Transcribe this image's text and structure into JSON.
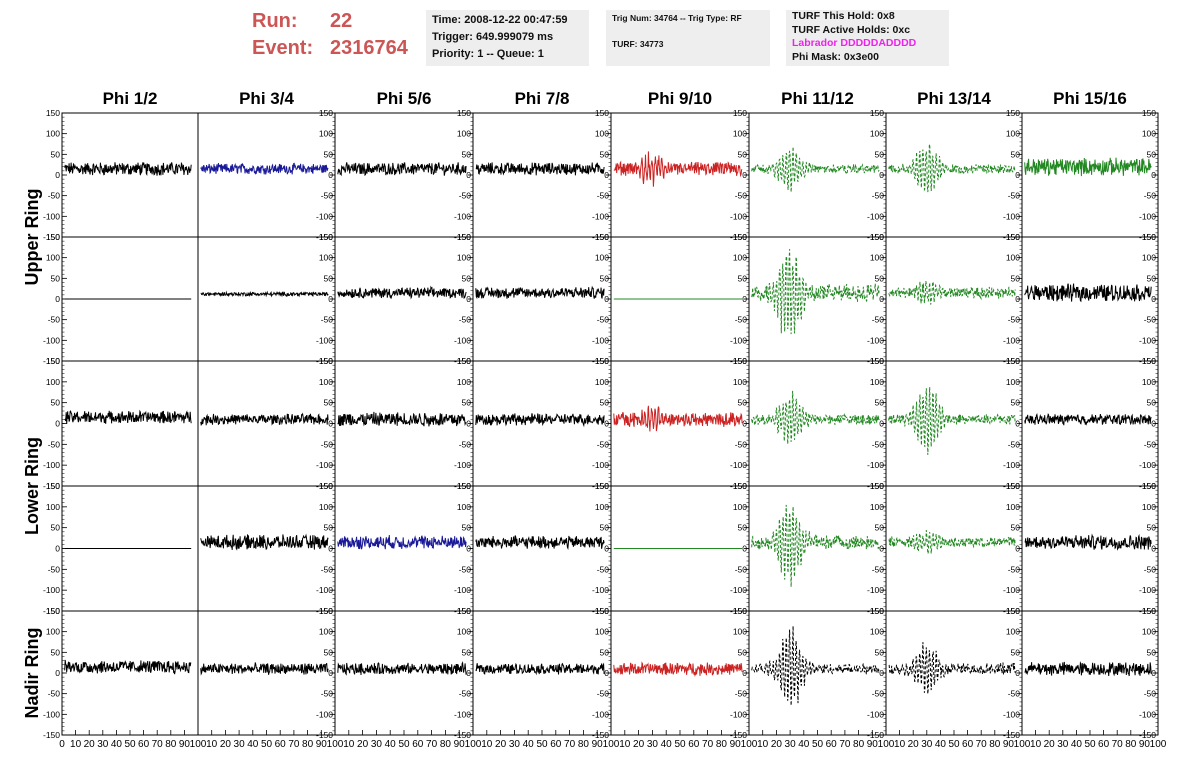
{
  "header": {
    "run_label": "Run:",
    "run_value": "22",
    "event_label": "Event:",
    "event_value": "2316764"
  },
  "info": {
    "time": "Time: 2008-12-22 00:47:59",
    "trigger": "Trigger: 649.999079 ms",
    "priority": "Priority: 1 -- Queue: 1",
    "trig_num": "Trig Num: 34764 -- Trig Type: RF",
    "turf": "TURF: 34773",
    "turf_this_hold": "TURF This Hold: 0x8",
    "turf_active_holds": "TURF Active Holds: 0xc",
    "labrador": "Labrador DDDDDADDDD",
    "phi_mask": "Phi Mask: 0x3e00"
  },
  "colors": {
    "header_red": "#cc5555",
    "magenta": "#ee22ee",
    "trace_black": "#000000",
    "trace_blue": "#1a1a99",
    "trace_red": "#cc2222",
    "trace_green": "#228822",
    "info_bg": "#eeeeee"
  },
  "chart_data": {
    "type": "line",
    "columns": [
      "Phi 1/2",
      "Phi 3/4",
      "Phi 5/6",
      "Phi 7/8",
      "Phi 9/10",
      "Phi 11/12",
      "Phi 13/14",
      "Phi 15/16"
    ],
    "rings": [
      "Upper Ring",
      "Lower Ring",
      "Nadir Ring"
    ],
    "x_ticks": [
      "0",
      "10",
      "20",
      "30",
      "40",
      "50",
      "60",
      "70",
      "80",
      "90",
      "100"
    ],
    "xlim": [
      0,
      100
    ],
    "ylim": [
      -150,
      150
    ],
    "y_ticks": [
      -150,
      -100,
      -50,
      0,
      50,
      100,
      150
    ],
    "rows": [
      {
        "ring": "Upper Ring",
        "traces": [
          {
            "color": "black",
            "style": "solid",
            "amp": 14,
            "offset": 15,
            "pulse": 0
          },
          {
            "color": "blue",
            "style": "solid",
            "amp": 11,
            "offset": 15,
            "pulse": 0
          },
          {
            "color": "black",
            "style": "solid",
            "amp": 13,
            "offset": 15,
            "pulse": 0
          },
          {
            "color": "black",
            "style": "solid",
            "amp": 13,
            "offset": 15,
            "pulse": 0
          },
          {
            "color": "red",
            "style": "solid",
            "amp": 14,
            "offset": 15,
            "pulse": 35
          },
          {
            "color": "green",
            "style": "dashed",
            "amp": 9,
            "offset": 15,
            "pulse": 60
          },
          {
            "color": "green",
            "style": "dashed",
            "amp": 10,
            "offset": 15,
            "pulse": 70
          },
          {
            "color": "green",
            "style": "solid",
            "amp": 18,
            "offset": 20,
            "pulse": 0
          }
        ]
      },
      {
        "ring": "Upper Ring",
        "traces": [
          {
            "color": "black",
            "style": "flat",
            "amp": 0,
            "offset": 0,
            "pulse": 0
          },
          {
            "color": "black",
            "style": "solid",
            "amp": 4,
            "offset": 12,
            "pulse": 0
          },
          {
            "color": "black",
            "style": "solid",
            "amp": 11,
            "offset": 15,
            "pulse": 0
          },
          {
            "color": "black",
            "style": "solid",
            "amp": 12,
            "offset": 15,
            "pulse": 0
          },
          {
            "color": "green",
            "style": "flat",
            "amp": 0,
            "offset": 0,
            "pulse": 0
          },
          {
            "color": "green",
            "style": "dashed",
            "amp": 18,
            "offset": 15,
            "pulse": 120
          },
          {
            "color": "green",
            "style": "dashed",
            "amp": 12,
            "offset": 15,
            "pulse": 30
          },
          {
            "color": "black",
            "style": "solid",
            "amp": 18,
            "offset": 15,
            "pulse": 0
          }
        ]
      },
      {
        "ring": "Lower Ring",
        "traces": [
          {
            "color": "black",
            "style": "solid",
            "amp": 13,
            "offset": 15,
            "pulse": 0
          },
          {
            "color": "black",
            "style": "solid",
            "amp": 11,
            "offset": 10,
            "pulse": 0
          },
          {
            "color": "black",
            "style": "solid",
            "amp": 15,
            "offset": 10,
            "pulse": 0
          },
          {
            "color": "black",
            "style": "solid",
            "amp": 12,
            "offset": 10,
            "pulse": 0
          },
          {
            "color": "red",
            "style": "solid",
            "amp": 15,
            "offset": 10,
            "pulse": 35
          },
          {
            "color": "green",
            "style": "dashed",
            "amp": 11,
            "offset": 10,
            "pulse": 70
          },
          {
            "color": "green",
            "style": "dashed",
            "amp": 10,
            "offset": 10,
            "pulse": 95
          },
          {
            "color": "black",
            "style": "solid",
            "amp": 11,
            "offset": 10,
            "pulse": 0
          }
        ]
      },
      {
        "ring": "Lower Ring",
        "traces": [
          {
            "color": "black",
            "style": "flat",
            "amp": 0,
            "offset": 0,
            "pulse": 0
          },
          {
            "color": "black",
            "style": "solid",
            "amp": 15,
            "offset": 15,
            "pulse": 0
          },
          {
            "color": "blue",
            "style": "solid",
            "amp": 14,
            "offset": 15,
            "pulse": 0
          },
          {
            "color": "black",
            "style": "solid",
            "amp": 13,
            "offset": 15,
            "pulse": 0
          },
          {
            "color": "green",
            "style": "flat",
            "amp": 0,
            "offset": 0,
            "pulse": 0
          },
          {
            "color": "green",
            "style": "dashed",
            "amp": 14,
            "offset": 15,
            "pulse": 110
          },
          {
            "color": "green",
            "style": "dashed",
            "amp": 11,
            "offset": 15,
            "pulse": 30
          },
          {
            "color": "black",
            "style": "solid",
            "amp": 15,
            "offset": 15,
            "pulse": 0
          }
        ]
      },
      {
        "ring": "Nadir Ring",
        "traces": [
          {
            "color": "black",
            "style": "solid",
            "amp": 14,
            "offset": 15,
            "pulse": 0
          },
          {
            "color": "black",
            "style": "solid",
            "amp": 12,
            "offset": 10,
            "pulse": 0
          },
          {
            "color": "black",
            "style": "solid",
            "amp": 12,
            "offset": 10,
            "pulse": 0
          },
          {
            "color": "black",
            "style": "solid",
            "amp": 11,
            "offset": 10,
            "pulse": 0
          },
          {
            "color": "red",
            "style": "solid",
            "amp": 13,
            "offset": 10,
            "pulse": 0
          },
          {
            "color": "black",
            "style": "dashed",
            "amp": 11,
            "offset": 10,
            "pulse": 110
          },
          {
            "color": "black",
            "style": "dashed",
            "amp": 12,
            "offset": 10,
            "pulse": 65
          },
          {
            "color": "black",
            "style": "solid",
            "amp": 14,
            "offset": 10,
            "pulse": 0
          }
        ]
      }
    ]
  }
}
